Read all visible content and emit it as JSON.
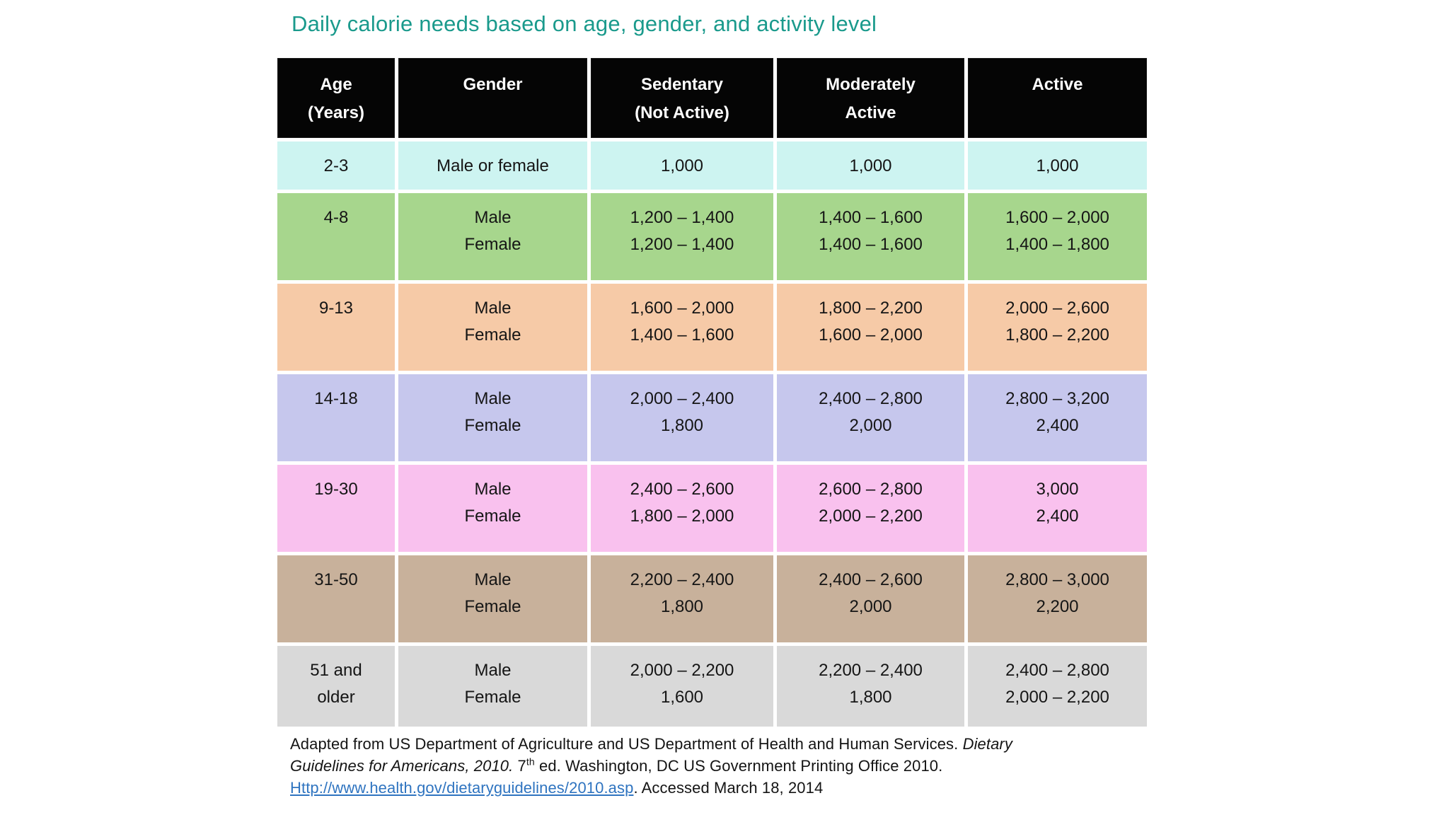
{
  "title": {
    "text": "Daily calorie needs based on age, gender, and activity level",
    "color": "#1a9a8c"
  },
  "table": {
    "header": {
      "bg": "#050505",
      "text_color": "#ffffff",
      "cols": [
        [
          "Age",
          "(Years)"
        ],
        [
          "Gender"
        ],
        [
          "Sedentary",
          "(Not Active)"
        ],
        [
          "Moderately",
          "Active"
        ],
        [
          "Active"
        ]
      ]
    },
    "rows": [
      {
        "bg": "#cdf4f1",
        "cells": [
          [
            "2-3"
          ],
          [
            "Male or female"
          ],
          [
            "1,000"
          ],
          [
            "1,000"
          ],
          [
            "1,000"
          ]
        ]
      },
      {
        "bg": "#a7d68d",
        "cells": [
          [
            "4-8"
          ],
          [
            "Male",
            "Female"
          ],
          [
            "1,200 – 1,400",
            "1,200 – 1,400"
          ],
          [
            "1,400 – 1,600",
            "1,400 – 1,600"
          ],
          [
            "1,600 – 2,000",
            "1,400 – 1,800"
          ]
        ]
      },
      {
        "bg": "#f6caa7",
        "cells": [
          [
            "9-13"
          ],
          [
            "Male",
            "Female"
          ],
          [
            "1,600 – 2,000",
            "1,400 – 1,600"
          ],
          [
            "1,800 – 2,200",
            "1,600 – 2,000"
          ],
          [
            "2,000 – 2,600",
            "1,800 – 2,200"
          ]
        ]
      },
      {
        "bg": "#c6c7ed",
        "cells": [
          [
            "14-18"
          ],
          [
            "Male",
            "Female"
          ],
          [
            "2,000 – 2,400",
            "1,800"
          ],
          [
            "2,400 – 2,800",
            "2,000"
          ],
          [
            "2,800 – 3,200",
            "2,400"
          ]
        ]
      },
      {
        "bg": "#f9c1ee",
        "cells": [
          [
            "19-30"
          ],
          [
            "Male",
            "Female"
          ],
          [
            "2,400 – 2,600",
            "1,800 – 2,000"
          ],
          [
            "2,600 – 2,800",
            "2,000 – 2,200"
          ],
          [
            "3,000",
            "2,400"
          ]
        ]
      },
      {
        "bg": "#c8b19b",
        "cells": [
          [
            "31-50"
          ],
          [
            "Male",
            "Female"
          ],
          [
            "2,200 – 2,400",
            "1,800"
          ],
          [
            "2,400 – 2,600",
            "2,000"
          ],
          [
            "2,800 – 3,000",
            "2,200"
          ]
        ]
      },
      {
        "bg": "#d9d9d9",
        "cells": [
          [
            "51 and",
            "older"
          ],
          [
            "Male",
            "Female"
          ],
          [
            "2,000 – 2,200",
            "1,600"
          ],
          [
            "2,200 – 2,400",
            "1,800"
          ],
          [
            "2,400 – 2,800",
            "2,000 – 2,200"
          ]
        ]
      }
    ]
  },
  "footnote": {
    "line1_normal": "Adapted from US Department of Agriculture and US Department of Health and Human Services. ",
    "line1_italic": "Dietary",
    "line2_italic": "Guidelines for Americans, 2010.",
    "line2_normal_a": " 7",
    "line2_sup": "th",
    "line2_normal_b": " ed. Washington, DC US Government Printing Office 2010.",
    "line3_link": "Http://www.health.gov/dietaryguidelines/2010.asp",
    "line3_normal": ". Accessed March 18, 2014",
    "link_color": "#2f74c0"
  },
  "chart_data": {
    "type": "table",
    "title": "Daily calorie needs based on age, gender, and activity level",
    "columns": [
      "Age (Years)",
      "Gender",
      "Sedentary (Not Active)",
      "Moderately Active",
      "Active"
    ],
    "rows": [
      {
        "age": "2-3",
        "gender": "Male or female",
        "sedentary": "1,000",
        "moderately_active": "1,000",
        "active": "1,000"
      },
      {
        "age": "4-8",
        "gender": "Male | Female",
        "sedentary": "1,200–1,400 | 1,200–1,400",
        "moderately_active": "1,400–1,600 | 1,400–1,600",
        "active": "1,600–2,000 | 1,400–1,800"
      },
      {
        "age": "9-13",
        "gender": "Male | Female",
        "sedentary": "1,600–2,000 | 1,400–1,600",
        "moderately_active": "1,800–2,200 | 1,600–2,000",
        "active": "2,000–2,600 | 1,800–2,200"
      },
      {
        "age": "14-18",
        "gender": "Male | Female",
        "sedentary": "2,000–2,400 | 1,800",
        "moderately_active": "2,400–2,800 | 2,000",
        "active": "2,800–3,200 | 2,400"
      },
      {
        "age": "19-30",
        "gender": "Male | Female",
        "sedentary": "2,400–2,600 | 1,800–2,000",
        "moderately_active": "2,600–2,800 | 2,000–2,200",
        "active": "3,000 | 2,400"
      },
      {
        "age": "31-50",
        "gender": "Male | Female",
        "sedentary": "2,200–2,400 | 1,800",
        "moderately_active": "2,400–2,600 | 2,000",
        "active": "2,800–3,000 | 2,200"
      },
      {
        "age": "51 and older",
        "gender": "Male | Female",
        "sedentary": "2,000–2,200 | 1,600",
        "moderately_active": "2,200–2,400 | 1,800",
        "active": "2,400–2,800 | 2,000–2,200"
      }
    ]
  }
}
